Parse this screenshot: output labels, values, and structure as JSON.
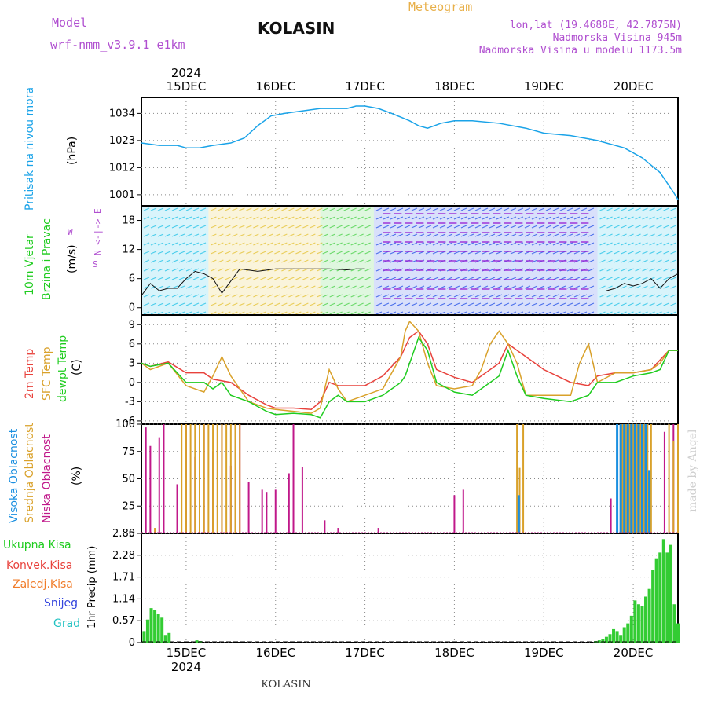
{
  "header": {
    "model_label": "Model",
    "model_name": "wrf-nmm_v3.9.1 e1km",
    "meteogram_label": "Meteogram",
    "station": "KOLASIN",
    "lonlat": "lon,lat (19.4688E, 42.7875N)",
    "elevation": "Nadmorska Visina 945m",
    "model_elevation": "Nadmorska Visina u modelu 1173.5m"
  },
  "time_axis": {
    "year": "2024",
    "day_labels": [
      "15DEC",
      "16DEC",
      "17DEC",
      "18DEC",
      "19DEC",
      "20DEC"
    ],
    "range_days": [
      -0.5,
      5.5
    ]
  },
  "footer": {
    "station": "KOLASIN",
    "watermark": "made by Angel"
  },
  "panel_labels": {
    "pressure": {
      "name": "Pritisak na nivou mora",
      "unit": "(hPa)"
    },
    "wind": {
      "name1": "10m Vjetar",
      "name2": "Brzina i Pravac",
      "unit": "(m/s)",
      "compass": "N <-|-> E",
      "compass_w": "W",
      "compass_s": "S"
    },
    "temp": {
      "t2m": "2m Temp",
      "sfc": "SFC Temp",
      "dew": "dewpt Temp",
      "unit": "(C)"
    },
    "cloud": {
      "high": "Visoka Oblacnost",
      "mid": "Srednja Oblacnost",
      "low": "Niska Oblacnost",
      "unit": "(%)"
    },
    "precip": {
      "total": "Ukupna Kisa",
      "conv": "Konvek.Kisa",
      "frozen": "Zaledj.Kisa",
      "snow": "Snijeg",
      "graupel": "Grad",
      "unit": "1hr Precip (mm)"
    }
  },
  "colors": {
    "pressure": "#1aa3e8",
    "t2m": "#e8423c",
    "sfc": "#d9a12a",
    "dewpt": "#1fcc1f",
    "cloud_high": "#1a8fe0",
    "cloud_mid": "#d9a12a",
    "cloud_low": "#c0188a",
    "precip": "#33cc33",
    "label_purple": "#b04fd0"
  },
  "chart_data": [
    {
      "type": "line",
      "panel": "pressure",
      "ylabel": "(hPa)",
      "yticks": [
        1001,
        1012,
        1023,
        1034
      ],
      "ylim": [
        996.5,
        1040.5
      ],
      "x_unit": "days from 15DEC 00UTC",
      "series": [
        {
          "x": [
            -0.5,
            -0.3,
            -0.1,
            0.0,
            0.15,
            0.3,
            0.5,
            0.65,
            0.8,
            0.95,
            1.1,
            1.3,
            1.5,
            1.7,
            1.8,
            1.9,
            2.0,
            2.15,
            2.3,
            2.5,
            2.6,
            2.7,
            2.85,
            3.0,
            3.2,
            3.5,
            3.8,
            4.0,
            4.3,
            4.6,
            4.9,
            5.1,
            5.3,
            5.45,
            5.5
          ],
          "values": [
            1022,
            1021,
            1021,
            1020,
            1020,
            1021,
            1022,
            1024,
            1029,
            1033,
            1034,
            1035,
            1036,
            1036,
            1036,
            1037,
            1037,
            1036,
            1034,
            1031,
            1029,
            1028,
            1030,
            1031,
            1031,
            1030,
            1028,
            1026,
            1025,
            1023,
            1020,
            1016,
            1010,
            1002,
            999
          ]
        }
      ]
    },
    {
      "type": "line",
      "panel": "wind",
      "ylabel": "(m/s)",
      "yticks": [
        0,
        6,
        12,
        18
      ],
      "ylim": [
        -1.5,
        21
      ],
      "series": [
        {
          "x": [
            -0.5,
            -0.4,
            -0.3,
            -0.2,
            -0.1,
            0.0,
            0.1,
            0.2,
            0.3,
            0.4,
            0.6,
            0.8,
            1.0,
            1.2,
            1.4,
            1.6,
            1.8,
            1.9,
            2.0
          ],
          "values": [
            2.5,
            5,
            3.5,
            4,
            4,
            6,
            7.5,
            7,
            6,
            3,
            8,
            7.5,
            8,
            8,
            8,
            8,
            7.8,
            8,
            8
          ]
        },
        {
          "x": [
            4.7,
            4.8,
            4.9,
            5.0,
            5.1,
            5.2,
            5.3,
            5.4,
            5.5
          ],
          "values": [
            3.5,
            4,
            5,
            4.5,
            5,
            6,
            4,
            6,
            7
          ]
        }
      ]
    },
    {
      "type": "line",
      "panel": "temperature",
      "ylabel": "(C)",
      "yticks": [
        -6,
        -3,
        0,
        3,
        6,
        9
      ],
      "ylim": [
        -6.5,
        10.5
      ],
      "series": [
        {
          "name": "2m Temp",
          "x": [
            -0.5,
            -0.4,
            -0.2,
            0.0,
            0.2,
            0.3,
            0.5,
            0.7,
            0.9,
            1.0,
            1.2,
            1.4,
            1.5,
            1.6,
            1.7,
            2.0,
            2.2,
            2.4,
            2.5,
            2.6,
            2.7,
            2.8,
            3.0,
            3.2,
            3.5,
            3.6,
            3.7,
            3.8,
            4.0,
            4.3,
            4.5,
            4.6,
            4.8,
            5.0,
            5.2,
            5.4,
            5.5
          ],
          "values": [
            3,
            2.5,
            3.2,
            1.5,
            1.5,
            0.5,
            0,
            -2,
            -3.5,
            -4,
            -4,
            -4.2,
            -3,
            0,
            -0.5,
            -0.5,
            1,
            4,
            7,
            8,
            6,
            2,
            0.8,
            0,
            3,
            6,
            5,
            4,
            2,
            0,
            -0.5,
            1,
            1.5,
            1.5,
            2,
            5,
            5
          ]
        },
        {
          "name": "SFC Temp",
          "x": [
            -0.5,
            -0.4,
            -0.2,
            0.0,
            0.1,
            0.2,
            0.3,
            0.4,
            0.5,
            0.7,
            0.9,
            1.0,
            1.2,
            1.4,
            1.5,
            1.6,
            1.7,
            1.8,
            2.0,
            2.2,
            2.4,
            2.45,
            2.5,
            2.6,
            2.7,
            2.8,
            3.0,
            3.2,
            3.3,
            3.4,
            3.5,
            3.6,
            3.7,
            3.8,
            4.0,
            4.2,
            4.3,
            4.4,
            4.5,
            4.6,
            4.8,
            5.0,
            5.2,
            5.3,
            5.4,
            5.5
          ],
          "values": [
            3,
            2,
            3,
            -0.5,
            -1,
            -1.5,
            1,
            4,
            1,
            -3,
            -4,
            -4.2,
            -4.5,
            -4.8,
            -4,
            2,
            -1,
            -3,
            -2,
            -1,
            4,
            8,
            9.5,
            8,
            3,
            -0.5,
            -1,
            -0.5,
            2,
            6,
            8,
            6,
            3,
            -2,
            -2,
            -2,
            -2,
            3,
            6,
            0,
            1.5,
            1.5,
            2,
            3,
            5,
            5
          ]
        },
        {
          "name": "dewpt Temp",
          "x": [
            -0.5,
            -0.4,
            -0.2,
            0.0,
            0.2,
            0.3,
            0.4,
            0.5,
            0.7,
            0.9,
            1.0,
            1.2,
            1.4,
            1.5,
            1.6,
            1.7,
            1.8,
            2.0,
            2.2,
            2.4,
            2.45,
            2.5,
            2.6,
            2.7,
            2.8,
            3.0,
            3.2,
            3.5,
            3.6,
            3.7,
            3.8,
            4.0,
            4.3,
            4.5,
            4.6,
            4.8,
            5.0,
            5.2,
            5.3,
            5.4,
            5.5
          ],
          "values": [
            3,
            2.5,
            3,
            0,
            0,
            -1,
            0,
            -2,
            -3,
            -4.5,
            -5,
            -4.8,
            -5,
            -5.5,
            -3,
            -2,
            -3,
            -3,
            -2,
            0,
            1,
            3,
            7,
            5,
            0,
            -1.5,
            -2,
            1,
            5,
            1,
            -2,
            -2.5,
            -3,
            -2,
            0,
            0,
            1,
            1.5,
            2,
            5,
            5
          ]
        }
      ]
    },
    {
      "type": "bar",
      "panel": "cloud",
      "ylabel": "(%)",
      "yticks": [
        0,
        25,
        50,
        75,
        100
      ],
      "ylim": [
        0,
        100
      ],
      "series": [
        {
          "name": "Niska Oblacnost",
          "x": [
            -0.45,
            -0.4,
            -0.3,
            -0.25,
            -0.1,
            0.0,
            0.1,
            0.2,
            0.3,
            0.4,
            0.5,
            0.55,
            0.6,
            0.7,
            0.85,
            0.9,
            1.0,
            1.15,
            1.2,
            1.3,
            1.55,
            1.7,
            2.15,
            3.0,
            3.1,
            4.75,
            4.9,
            5.05,
            5.15,
            5.35,
            5.45,
            5.5
          ],
          "values": [
            97,
            80,
            88,
            100,
            45,
            100,
            70,
            100,
            75,
            100,
            62,
            100,
            100,
            47,
            40,
            38,
            40,
            55,
            100,
            61,
            12,
            5,
            5,
            35,
            40,
            32,
            100,
            88,
            62,
            93,
            100,
            100
          ]
        },
        {
          "name": "Srednja Oblacnost",
          "x": [
            -0.35,
            -0.05,
            0.0,
            0.05,
            0.1,
            0.15,
            0.2,
            0.25,
            0.3,
            0.35,
            0.4,
            0.45,
            0.5,
            0.55,
            0.6,
            3.7,
            3.73,
            3.77,
            4.88,
            4.92,
            4.96,
            5.0,
            5.04,
            5.08,
            5.12,
            5.16,
            5.2,
            5.4,
            5.45,
            5.5
          ],
          "values": [
            5,
            100,
            100,
            100,
            100,
            100,
            100,
            100,
            100,
            100,
            100,
            100,
            100,
            100,
            100,
            100,
            60,
            100,
            100,
            100,
            100,
            100,
            100,
            100,
            100,
            100,
            100,
            100,
            85,
            100
          ]
        },
        {
          "name": "Visoka Oblacnost",
          "x": [
            3.72,
            4.82,
            4.86,
            4.9,
            4.94,
            4.98,
            5.02,
            5.06,
            5.1,
            5.14,
            5.18
          ],
          "values": [
            35,
            100,
            100,
            100,
            100,
            100,
            100,
            100,
            100,
            100,
            58
          ]
        }
      ]
    },
    {
      "type": "bar",
      "panel": "precip",
      "ylabel": "1hr Precip (mm)",
      "yticks": [
        0,
        0.57,
        1.14,
        1.71,
        2.28,
        2.85
      ],
      "ylim": [
        0,
        2.85
      ],
      "series": [
        {
          "name": "Ukupna Kisa",
          "x": [
            -0.47,
            -0.43,
            -0.39,
            -0.35,
            -0.31,
            -0.27,
            -0.23,
            -0.19,
            0.12,
            0.16,
            4.58,
            4.62,
            4.66,
            4.7,
            4.74,
            4.78,
            4.82,
            4.86,
            4.9,
            4.94,
            4.98,
            5.02,
            5.06,
            5.1,
            5.14,
            5.18,
            5.22,
            5.26,
            5.3,
            5.34,
            5.38,
            5.42,
            5.46,
            5.5
          ],
          "values": [
            0.3,
            0.6,
            0.9,
            0.85,
            0.75,
            0.65,
            0.2,
            0.25,
            0.06,
            0.04,
            0.04,
            0.06,
            0.1,
            0.15,
            0.22,
            0.35,
            0.3,
            0.2,
            0.4,
            0.5,
            0.7,
            1.1,
            1.0,
            0.95,
            1.2,
            1.4,
            1.9,
            2.2,
            2.35,
            2.7,
            2.35,
            2.55,
            1.0,
            0.5
          ]
        }
      ]
    }
  ]
}
